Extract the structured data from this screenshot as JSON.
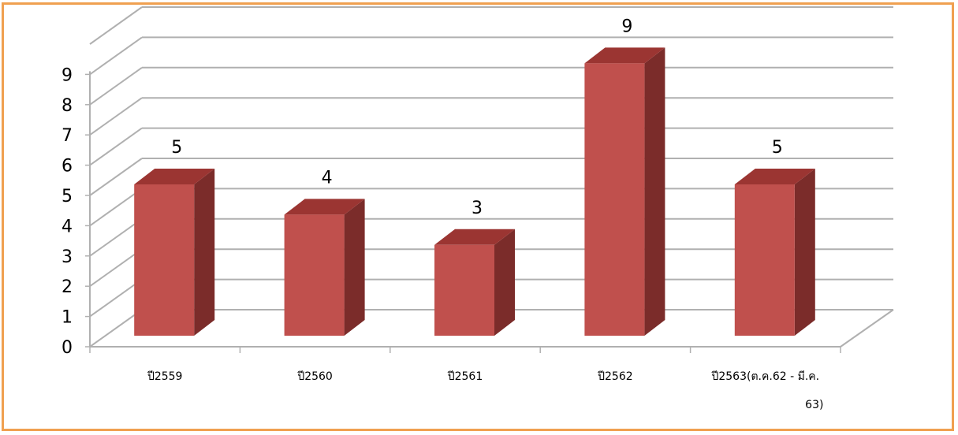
{
  "chart_data": {
    "type": "bar",
    "categories": [
      "ปี2559",
      "ปี2560",
      "ปี2561",
      "ปี2562",
      "ปี2563(ต.ค.62 - มี.ค. 63)"
    ],
    "category_lines": [
      [
        "ปี2559"
      ],
      [
        "ปี2560"
      ],
      [
        "ปี2561"
      ],
      [
        "ปี2562"
      ],
      [
        "ปี2563(ต.ค.62 - มี.ค.",
        "63)"
      ]
    ],
    "values": [
      5,
      4,
      3,
      9,
      5
    ],
    "data_labels": [
      "5",
      "4",
      "3",
      "9",
      "5"
    ],
    "ylim": [
      0,
      9
    ],
    "yticks": [
      "0",
      "1",
      "2",
      "3",
      "4",
      "5",
      "6",
      "7",
      "8",
      "9"
    ],
    "title": "",
    "xlabel": "",
    "ylabel": "",
    "grid": true,
    "legend": "none",
    "style": "3d-column"
  },
  "colors": {
    "bar_front": "#c0504d",
    "bar_top": "#9b3532",
    "bar_side": "#7b2c2a",
    "grid": "#b0b0b0",
    "frame": "#f0a050"
  }
}
